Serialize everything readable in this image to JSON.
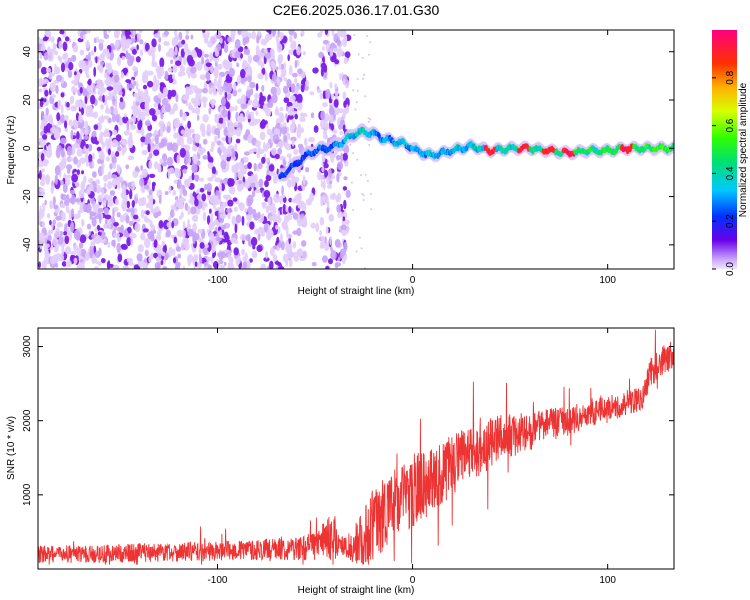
{
  "title": "C2E6.2025.036.17.01.G30",
  "colors": {
    "snr_line": "#ee3333",
    "spectrogram_low": "#6a00e8",
    "axis": "#000000"
  },
  "chart_data": [
    {
      "type": "heatmap",
      "name": "spectrogram",
      "xlabel": "Height of straight line (km)",
      "ylabel": "Frequency (Hz)",
      "xlim": [
        -192,
        134
      ],
      "ylim": [
        -50,
        49
      ],
      "xticks": [
        -100,
        0,
        100
      ],
      "xtick_labels": [
        "-100",
        "0",
        "100"
      ],
      "yticks": [
        -40,
        -20,
        0,
        20,
        40
      ],
      "ytick_labels": [
        "-40",
        "-20",
        "0",
        "20",
        "40"
      ],
      "grid": false,
      "colorbar": {
        "label": "Normalized spectral amplitude",
        "range": [
          0,
          1
        ],
        "ticks": [
          0.0,
          0.2,
          0.4,
          0.6,
          0.8
        ],
        "tick_labels": [
          "0.0",
          "0.2",
          "0.4",
          "0.6",
          "0.8"
        ],
        "colormap": "rainbow (violet -> blue -> cyan -> green -> yellow -> orange -> red -> magenta)"
      },
      "noise_region_km": [
        -192,
        -33
      ],
      "signal_trace": {
        "height_km": [
          -68,
          -62,
          -55,
          -50,
          -45,
          -40,
          -35,
          -30,
          -25,
          -20,
          -15,
          -10,
          -5,
          0,
          5,
          10,
          20,
          30,
          40,
          50,
          60,
          70,
          80,
          90,
          100,
          110,
          120,
          134
        ],
        "frequency_hz": [
          -12,
          -8,
          -3,
          -1,
          0,
          1,
          3,
          6,
          7,
          6,
          4,
          3,
          2,
          0,
          -2,
          -3,
          -1,
          1,
          -1,
          0,
          0,
          -1,
          -2,
          -1,
          -1,
          0,
          0,
          0
        ],
        "peak_amplitude_near_km": [
          40,
          57,
          70,
          80,
          110
        ]
      }
    },
    {
      "type": "line",
      "name": "snr",
      "xlabel": "Height of straight line (km)",
      "ylabel": "SNR (10 * v/v)",
      "xlim": [
        -192,
        134
      ],
      "ylim": [
        0,
        3250
      ],
      "xticks": [
        -100,
        0,
        100
      ],
      "xtick_labels": [
        "-100",
        "0",
        "100"
      ],
      "yticks": [
        1000,
        2000,
        3000
      ],
      "ytick_labels": [
        "1000",
        "2000",
        "3000"
      ],
      "grid": false,
      "series": [
        {
          "color": "#ee3333",
          "x": [
            -192,
            -180,
            -160,
            -140,
            -120,
            -100,
            -80,
            -60,
            -50,
            -45,
            -40,
            -38,
            -35,
            -30,
            -25,
            -20,
            -15,
            -10,
            -5,
            0,
            10,
            20,
            30,
            40,
            50,
            60,
            70,
            80,
            90,
            100,
            110,
            118,
            122,
            126,
            130,
            134
          ],
          "y": [
            200,
            200,
            200,
            220,
            230,
            240,
            260,
            280,
            310,
            380,
            450,
            330,
            300,
            320,
            450,
            600,
            750,
            850,
            950,
            1050,
            1200,
            1400,
            1550,
            1700,
            1800,
            1850,
            1950,
            2000,
            2100,
            2150,
            2250,
            2300,
            2650,
            2750,
            2850,
            2900
          ],
          "spread": [
            120,
            120,
            120,
            130,
            130,
            130,
            140,
            160,
            200,
            250,
            350,
            150,
            120,
            250,
            400,
            500,
            500,
            500,
            500,
            500,
            450,
            420,
            400,
            350,
            300,
            260,
            230,
            200,
            200,
            180,
            170,
            160,
            200,
            200,
            220,
            220
          ]
        }
      ]
    }
  ]
}
